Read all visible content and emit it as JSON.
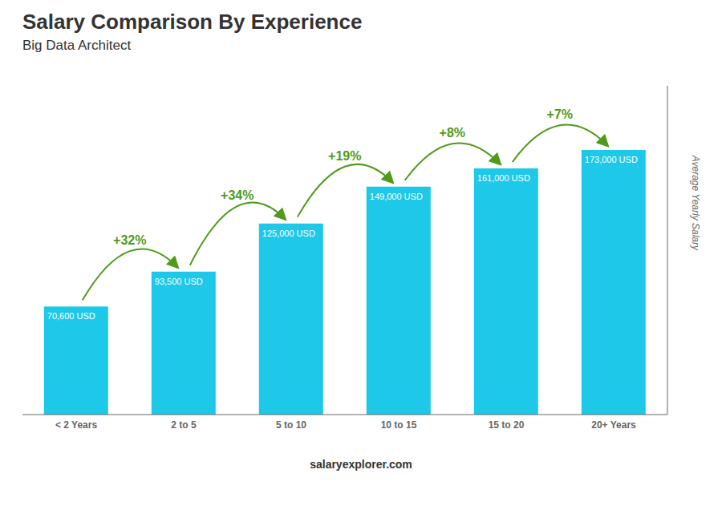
{
  "chart_data": {
    "type": "bar",
    "title": "Salary Comparison By Experience",
    "subtitle": "Big Data Architect",
    "ylabel": "Average Yearly Salary",
    "categories": [
      "< 2 Years",
      "2 to 5",
      "5 to 10",
      "10 to 15",
      "15 to 20",
      "20+ Years"
    ],
    "values": [
      70600,
      93500,
      125000,
      149000,
      161000,
      173000
    ],
    "value_labels": [
      "70,600 USD",
      "93,500 USD",
      "125,000 USD",
      "149,000 USD",
      "161,000 USD",
      "173,000 USD"
    ],
    "data_labels": true,
    "annotations": [
      "+32%",
      "+34%",
      "+19%",
      "+8%",
      "+7%"
    ],
    "footer": "salaryexplorer.com",
    "color": "#1ec8e8",
    "ylim": [
      0,
      215000
    ],
    "tick_labels": "x",
    "grid": false
  }
}
